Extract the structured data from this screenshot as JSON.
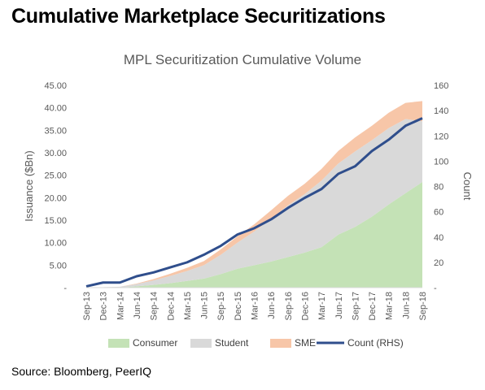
{
  "header": {
    "title": "Cumulative Marketplace Securitizations"
  },
  "footer": {
    "source": "Source: Bloomberg, PeerIQ"
  },
  "chart_data": {
    "type": "area",
    "title": "MPL Securitization Cumulative Volume",
    "ylabel": "Issuance ($Bn)",
    "y2label": "Count",
    "ylim": [
      0,
      45
    ],
    "y2lim": [
      0,
      160
    ],
    "y_ticks": [
      "-",
      "5.00",
      "10.00",
      "15.00",
      "20.00",
      "25.00",
      "30.00",
      "35.00",
      "40.00",
      "45.00"
    ],
    "y2_ticks": [
      "-",
      "20",
      "40",
      "60",
      "80",
      "100",
      "120",
      "140",
      "160"
    ],
    "categories": [
      "Sep-13",
      "Dec-13",
      "Mar-14",
      "Jun-14",
      "Sep-14",
      "Dec-14",
      "Mar-15",
      "Jun-15",
      "Sep-15",
      "Dec-15",
      "Mar-16",
      "Jun-16",
      "Sep-16",
      "Dec-16",
      "Mar-17",
      "Jun-17",
      "Sep-17",
      "Dec-17",
      "Mar-18",
      "Jun-18",
      "Sep-18"
    ],
    "legend_position": "bottom",
    "colors": {
      "consumer": "#c4e2b6",
      "student": "#d9d9d9",
      "sme": "#f7c6a8",
      "count": "#2f4e8c"
    },
    "series": [
      {
        "name": "Consumer",
        "kind": "area",
        "values": [
          0,
          0,
          0,
          0.3,
          0.6,
          1.0,
          1.5,
          2.0,
          3.0,
          4.2,
          5.0,
          5.8,
          6.8,
          7.8,
          9.0,
          11.8,
          13.5,
          15.8,
          18.5,
          21.0,
          23.5
        ]
      },
      {
        "name": "Student",
        "kind": "area",
        "values": [
          0,
          0.1,
          0.2,
          0.5,
          1.0,
          1.6,
          2.2,
          3.0,
          4.3,
          5.8,
          7.5,
          9.5,
          11.5,
          13.0,
          14.8,
          15.8,
          16.8,
          17.0,
          17.0,
          16.5,
          13.5
        ]
      },
      {
        "name": "SME",
        "kind": "area",
        "values": [
          0,
          0,
          0,
          0.1,
          0.3,
          0.5,
          0.7,
          0.9,
          1.2,
          1.4,
          1.6,
          1.9,
          2.1,
          2.3,
          2.6,
          2.8,
          3.1,
          3.2,
          3.4,
          3.6,
          4.5
        ]
      },
      {
        "name": "Count (RHS)",
        "kind": "line",
        "axis": "right",
        "values": [
          1,
          4,
          4,
          9,
          12,
          16,
          20,
          26,
          33,
          42,
          47,
          54,
          63,
          71,
          78,
          90,
          96,
          108,
          117,
          128,
          134
        ]
      }
    ]
  }
}
